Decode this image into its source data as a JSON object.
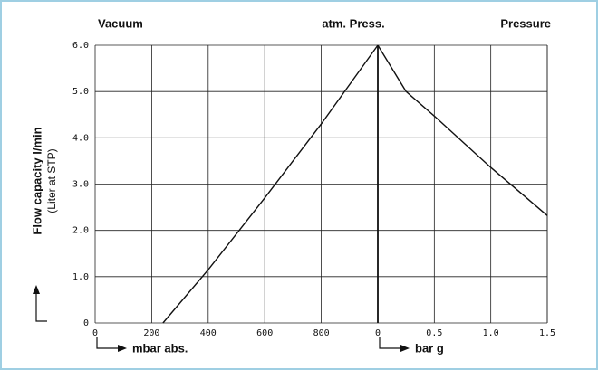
{
  "chart_data": {
    "type": "line",
    "header_labels": [
      "Vacuum",
      "atm. Press.",
      "Pressure"
    ],
    "ylabel": "Flow capacity l/min",
    "ylabel_sub": "(Liter at STP)",
    "ylim": [
      0,
      6
    ],
    "yticks": [
      0,
      {
        "value": 1,
        "label": "1.0"
      },
      {
        "value": 2,
        "label": "2.0"
      },
      {
        "value": 3,
        "label": "3.0"
      },
      {
        "value": 4,
        "label": "4.0"
      },
      {
        "value": 5,
        "label": "5.0"
      },
      {
        "value": 6,
        "label": "6.0"
      }
    ],
    "grid": true,
    "x_axes": [
      {
        "label": "mbar abs.",
        "xlim": [
          0,
          1000
        ],
        "xticks": [
          0,
          200,
          400,
          600,
          800
        ]
      },
      {
        "label": "bar g",
        "xlim": [
          0,
          1.5
        ],
        "xticks": [
          0,
          0.5,
          {
            "value": 1,
            "label": "1.0"
          },
          1.5
        ]
      }
    ],
    "series": [
      {
        "axis": 0,
        "color": "#111111",
        "x": [
          240,
          400,
          600,
          800,
          1000
        ],
        "values": [
          0,
          1.15,
          2.7,
          4.3,
          6.0
        ]
      },
      {
        "axis": 1,
        "color": "#111111",
        "x": [
          0,
          0.25,
          0.5,
          1.0,
          1.5
        ],
        "values": [
          6.0,
          5.0,
          4.47,
          3.36,
          2.32
        ]
      }
    ]
  }
}
